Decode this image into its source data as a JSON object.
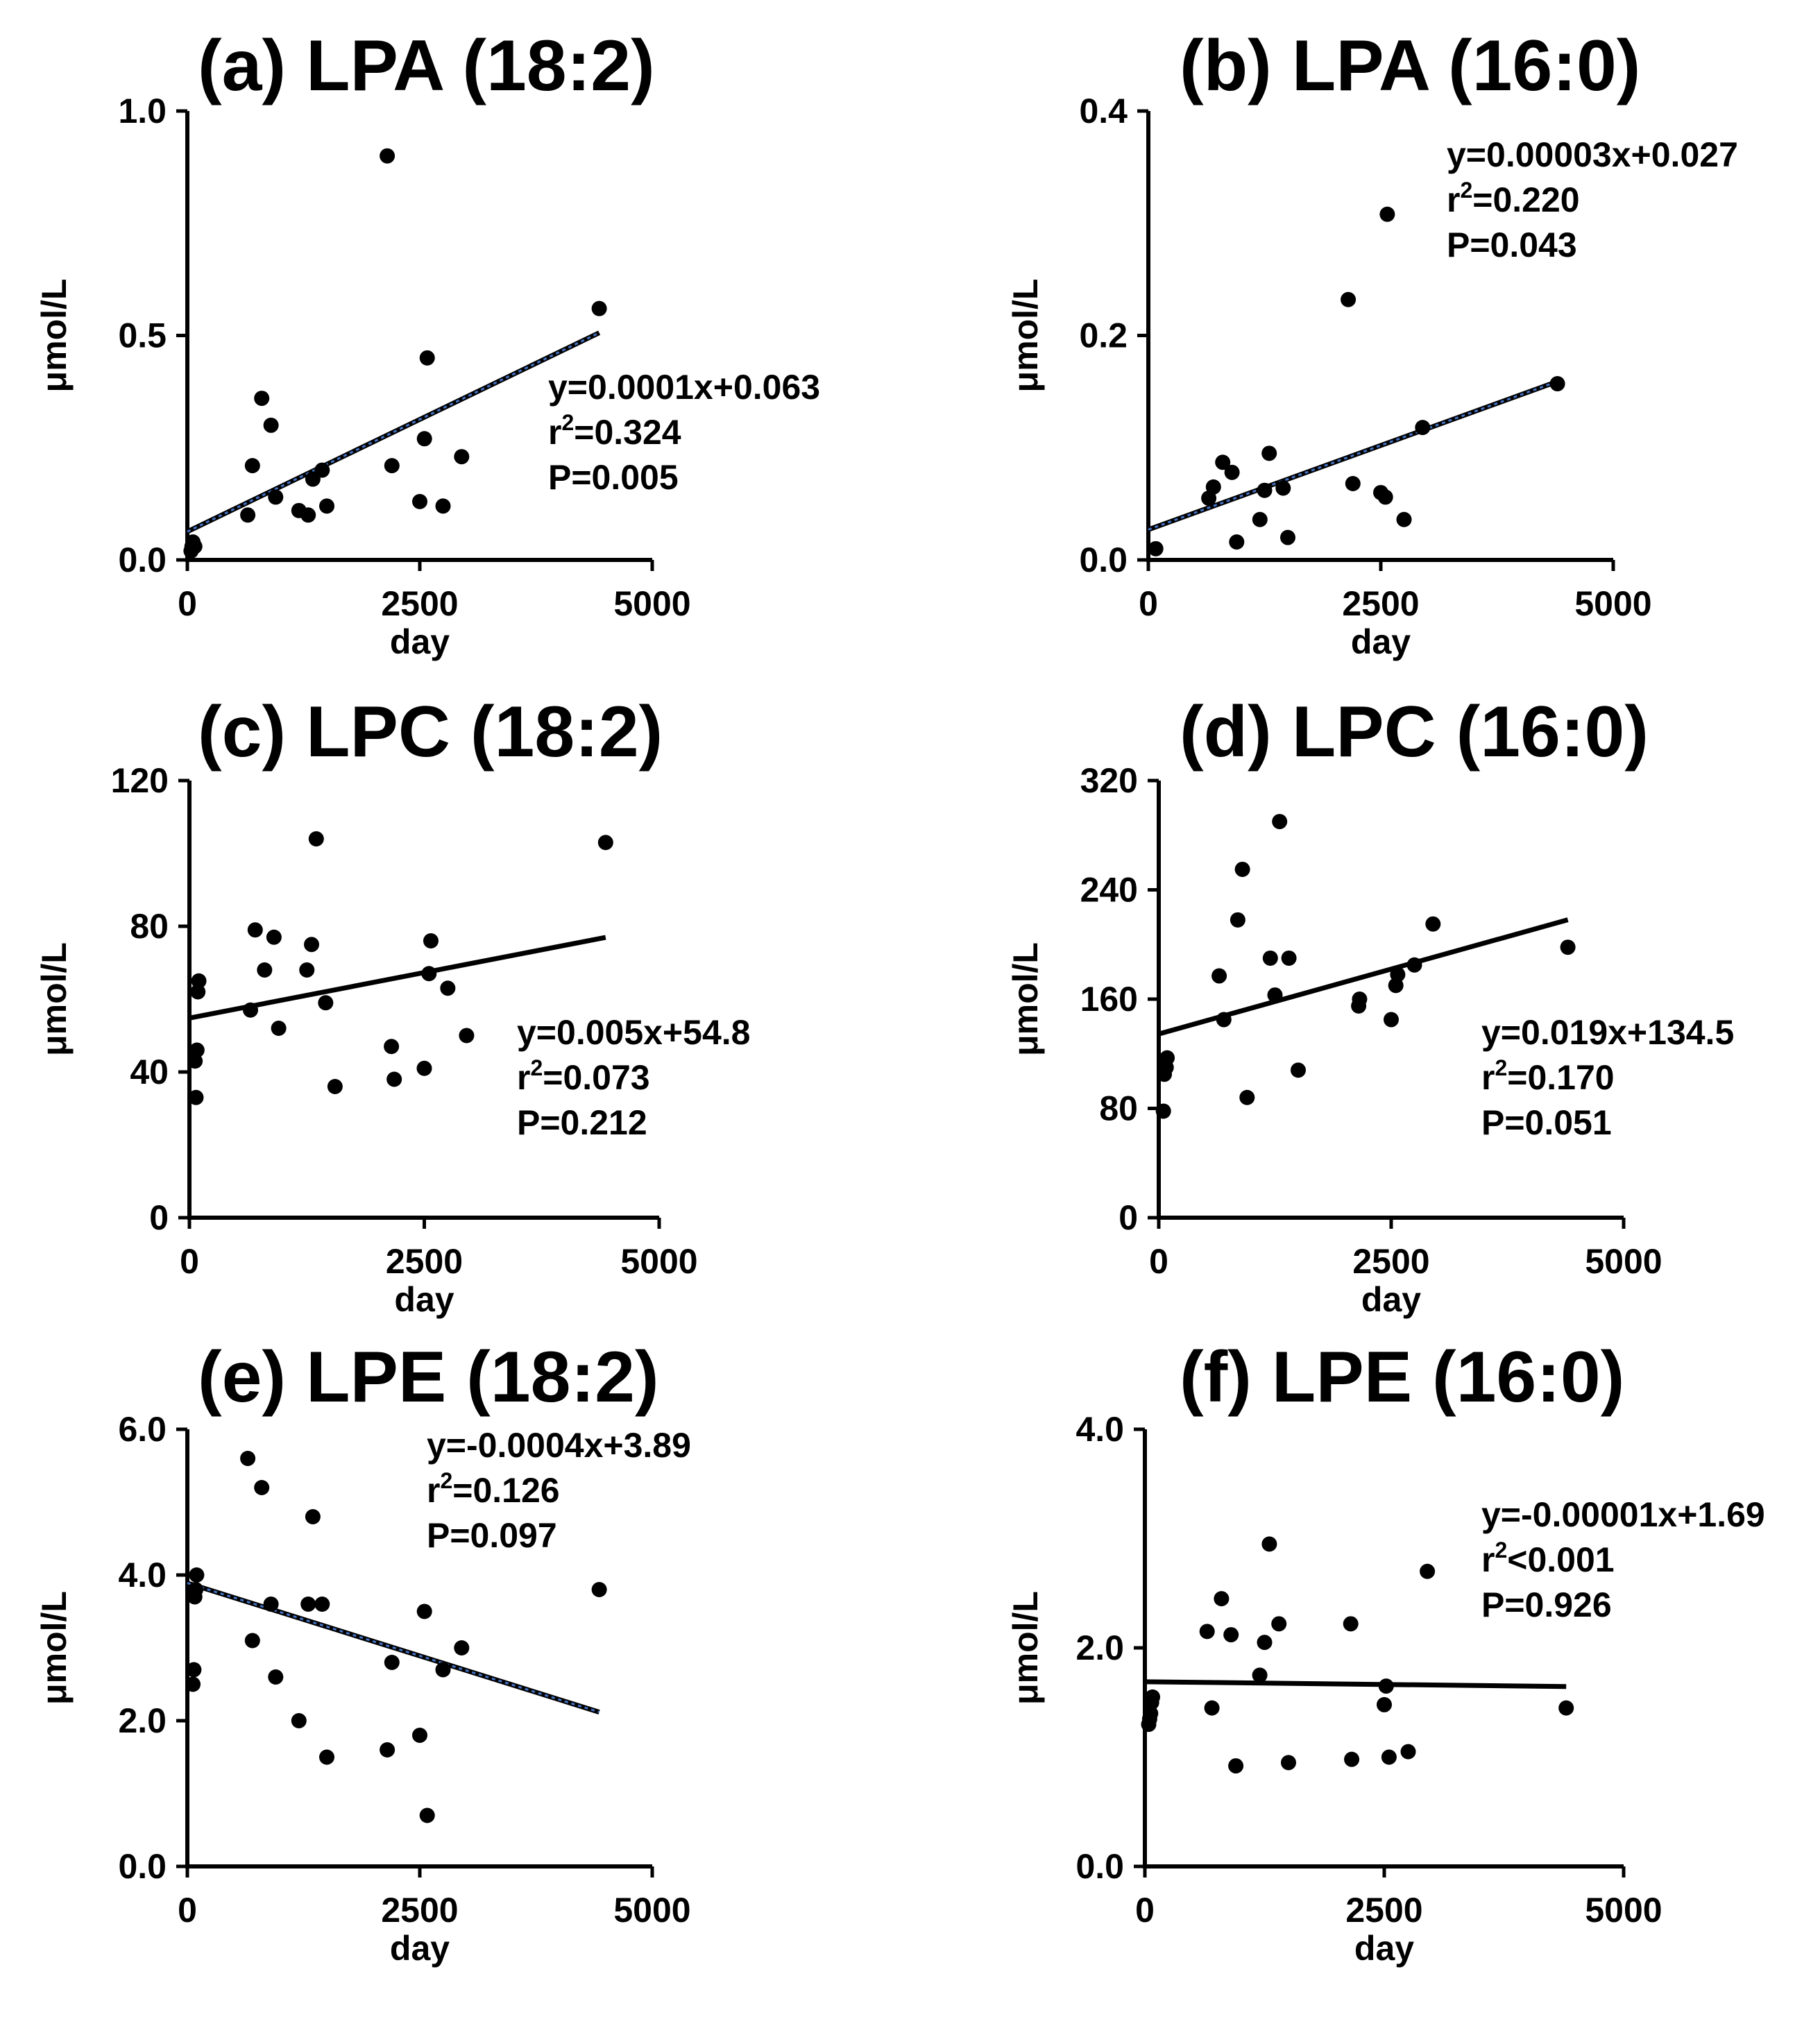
{
  "chart_data": [
    {
      "type": "scatter",
      "title": "(a) LPA (18:2)",
      "xlabel": "day",
      "ylabel": "μmol/L",
      "xlim": [
        0,
        5000
      ],
      "ylim": [
        0,
        1.0
      ],
      "xticks": [
        "0",
        "2500",
        "5000"
      ],
      "yticks": [
        "0.0",
        "0.5",
        "1.0"
      ],
      "x": [
        40,
        50,
        60,
        80,
        650,
        700,
        800,
        900,
        950,
        1200,
        1300,
        1350,
        1450,
        1500,
        2150,
        2200,
        2500,
        2550,
        2580,
        2750,
        2950,
        4430
      ],
      "y": [
        0.02,
        0.03,
        0.04,
        0.03,
        0.1,
        0.21,
        0.36,
        0.3,
        0.14,
        0.11,
        0.1,
        0.18,
        0.2,
        0.12,
        0.9,
        0.21,
        0.13,
        0.27,
        0.45,
        0.12,
        0.23,
        0.56
      ],
      "trend": {
        "slope": 0.0001,
        "intercept": 0.063,
        "x_range": [
          0,
          4430
        ],
        "color": "#4472c4",
        "dashed": true
      },
      "annotation": {
        "l1": "y=0.0001x+0.063",
        "r_prefix": "r",
        "r_sup": "2",
        "r_rest": "=0.324",
        "l3": "P=0.005"
      }
    },
    {
      "type": "scatter",
      "title": "(b) LPA (16:0)",
      "xlabel": "day",
      "ylabel": "μmol/L",
      "xlim": [
        0,
        5000
      ],
      "ylim": [
        0,
        0.4
      ],
      "xticks": [
        "0",
        "2500",
        "5000"
      ],
      "yticks": [
        "0.0",
        "0.2",
        "0.4"
      ],
      "x": [
        80,
        650,
        700,
        800,
        900,
        950,
        1200,
        1250,
        1300,
        1450,
        1500,
        2150,
        2200,
        2500,
        2550,
        2570,
        2750,
        2950,
        4400
      ],
      "y": [
        0.01,
        0.055,
        0.065,
        0.087,
        0.078,
        0.016,
        0.036,
        0.062,
        0.095,
        0.064,
        0.02,
        0.232,
        0.068,
        0.06,
        0.056,
        0.308,
        0.036,
        0.118,
        0.157
      ],
      "trend": {
        "slope": 3e-05,
        "intercept": 0.027,
        "x_range": [
          0,
          4400
        ],
        "color": "#4472c4",
        "dashed": true
      },
      "annotation": {
        "l1": "y=0.00003x+0.027",
        "r_prefix": "r",
        "r_sup": "2",
        "r_rest": "=0.220",
        "l3": "P=0.043"
      }
    },
    {
      "type": "scatter",
      "title": "(c) LPC (18:2)",
      "xlabel": "day",
      "ylabel": "μmol/L",
      "xlim": [
        0,
        5000
      ],
      "ylim": [
        0,
        120
      ],
      "xticks": [
        "0",
        "2500",
        "5000"
      ],
      "yticks": [
        "0",
        "40",
        "80",
        "120"
      ],
      "x": [
        60,
        70,
        80,
        90,
        100,
        650,
        700,
        800,
        900,
        950,
        1250,
        1300,
        1350,
        1450,
        1550,
        2150,
        2180,
        2500,
        2550,
        2570,
        2750,
        2950,
        4430
      ],
      "y": [
        43,
        33,
        46,
        62,
        65,
        57,
        79,
        68,
        77,
        52,
        68,
        75,
        104,
        59,
        36,
        47,
        38,
        41,
        67,
        76,
        63,
        50,
        103
      ],
      "trend": {
        "slope": 0.005,
        "intercept": 54.8,
        "x_range": [
          0,
          4430
        ],
        "color": "#000000",
        "dashed": false
      },
      "annotation": {
        "l1": "y=0.005x+54.8",
        "r_prefix": "r",
        "r_sup": "2",
        "r_rest": "=0.073",
        "l3": "P=0.212"
      }
    },
    {
      "type": "scatter",
      "title": "(d) LPC (16:0)",
      "xlabel": "day",
      "ylabel": "μmol/L",
      "xlim": [
        0,
        5000
      ],
      "ylim": [
        0,
        320
      ],
      "xticks": [
        "0",
        "2500",
        "5000"
      ],
      "yticks": [
        "0",
        "80",
        "160",
        "240",
        "320"
      ],
      "x": [
        50,
        60,
        80,
        90,
        650,
        700,
        850,
        900,
        950,
        1200,
        1250,
        1300,
        1400,
        1500,
        2150,
        2160,
        2500,
        2550,
        2570,
        2750,
        2950,
        4400
      ],
      "y": [
        78,
        105,
        110,
        117,
        177,
        145,
        218,
        255,
        88,
        190,
        163,
        290,
        190,
        108,
        155,
        160,
        145,
        170,
        178,
        185,
        215,
        198
      ],
      "trend": {
        "slope": 0.019,
        "intercept": 134.5,
        "x_range": [
          0,
          4400
        ],
        "color": "#000000",
        "dashed": false
      },
      "annotation": {
        "l1": "y=0.019x+134.5",
        "r_prefix": "r",
        "r_sup": "2",
        "r_rest": "=0.170",
        "l3": "P=0.051"
      }
    },
    {
      "type": "scatter",
      "title": "(e) LPE (18:2)",
      "xlabel": "day",
      "ylabel": "μmol/L",
      "xlim": [
        0,
        5000
      ],
      "ylim": [
        0,
        6.0
      ],
      "xticks": [
        "0",
        "2500",
        "5000"
      ],
      "yticks": [
        "0.0",
        "2.0",
        "4.0",
        "6.0"
      ],
      "x": [
        60,
        70,
        80,
        90,
        100,
        650,
        700,
        800,
        900,
        950,
        1200,
        1300,
        1350,
        1450,
        1500,
        2150,
        2200,
        2500,
        2550,
        2580,
        2750,
        2950,
        4430
      ],
      "y": [
        2.5,
        2.7,
        3.7,
        3.8,
        4.0,
        5.6,
        3.1,
        5.2,
        3.6,
        2.6,
        2.0,
        3.6,
        4.8,
        3.6,
        1.5,
        1.6,
        2.8,
        1.8,
        3.5,
        0.7,
        2.7,
        3.0,
        3.8
      ],
      "trend": {
        "slope": -0.0004,
        "intercept": 3.89,
        "x_range": [
          0,
          4430
        ],
        "color": "#4472c4",
        "dashed": true
      },
      "annotation": {
        "l1": "y=-0.0004x+3.89",
        "r_prefix": "r",
        "r_sup": "2",
        "r_rest": "=0.126",
        "l3": "P=0.097"
      }
    },
    {
      "type": "scatter",
      "title": "(f) LPE (16:0)",
      "xlabel": "day",
      "ylabel": "μmol/L",
      "xlim": [
        0,
        5000
      ],
      "ylim": [
        0,
        4.0
      ],
      "xticks": [
        "0",
        "2500",
        "5000"
      ],
      "yticks": [
        "0.0",
        "2.0",
        "4.0"
      ],
      "x": [
        40,
        50,
        60,
        70,
        80,
        650,
        700,
        800,
        900,
        950,
        1200,
        1250,
        1300,
        1400,
        1500,
        2150,
        2160,
        2500,
        2520,
        2550,
        2750,
        2950,
        4400
      ],
      "y": [
        1.3,
        1.35,
        1.4,
        1.5,
        1.55,
        2.15,
        1.45,
        2.45,
        2.12,
        0.92,
        1.75,
        2.05,
        2.95,
        2.22,
        0.95,
        2.22,
        0.98,
        1.48,
        1.65,
        1.0,
        1.05,
        2.7,
        1.45
      ],
      "trend": {
        "slope": -1e-05,
        "intercept": 1.69,
        "x_range": [
          0,
          4400
        ],
        "color": "#000000",
        "dashed": false
      },
      "annotation": {
        "l1": "y=-0.00001x+1.69",
        "r_prefix": "r",
        "r_sup": "2",
        "r_rest": "<0.001",
        "l3": "P=0.926"
      }
    }
  ]
}
